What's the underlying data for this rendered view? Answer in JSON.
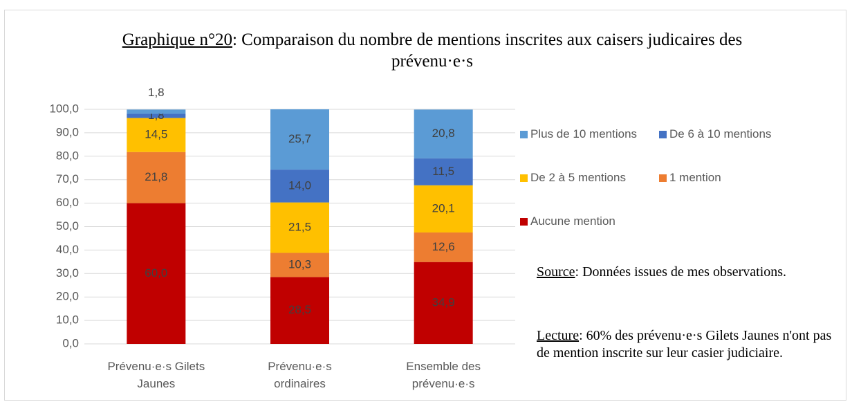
{
  "chart_data": {
    "type": "stacked_bar",
    "title_prefix": "Graphique n°20",
    "title": ": Comparaison du nombre de mentions inscrites aux caisers judicaires des prévenu·e·s",
    "categories": [
      "Prévenu·e·s Gilets Jaunes",
      "Prévenu·e·s ordinaires",
      "Ensemble des prévenu·e·s"
    ],
    "series": [
      {
        "name": "Aucune mention",
        "color": "#c00000",
        "values": [
          60.0,
          28.5,
          34.9
        ],
        "value_labels": [
          "60,0",
          "28,5",
          "34,9"
        ]
      },
      {
        "name": "1 mention",
        "color": "#ed7d31",
        "values": [
          21.8,
          10.3,
          12.6
        ],
        "value_labels": [
          "21,8",
          "10,3",
          "12,6"
        ]
      },
      {
        "name": "De 2 à 5 mentions",
        "color": "#ffc000",
        "values": [
          14.5,
          21.5,
          20.1
        ],
        "value_labels": [
          "14,5",
          "21,5",
          "20,1"
        ]
      },
      {
        "name": "De 6 à 10 mentions",
        "color": "#4472c4",
        "values": [
          1.8,
          14.0,
          11.5
        ],
        "value_labels": [
          "1,8",
          "14,0",
          "11,5"
        ]
      },
      {
        "name": "Plus de 10 mentions",
        "color": "#5b9bd5",
        "values": [
          1.8,
          25.7,
          20.8
        ],
        "value_labels": [
          "1,8",
          "25,7",
          "20,8"
        ]
      }
    ],
    "ylim": [
      0,
      100
    ],
    "yticks": [
      {
        "value": 0,
        "label": "0,0"
      },
      {
        "value": 10,
        "label": "10,0"
      },
      {
        "value": 20,
        "label": "20,0"
      },
      {
        "value": 30,
        "label": "30,0"
      },
      {
        "value": 40,
        "label": "40,0"
      },
      {
        "value": 50,
        "label": "50,0"
      },
      {
        "value": 60,
        "label": "60,0"
      },
      {
        "value": 70,
        "label": "70,0"
      },
      {
        "value": 80,
        "label": "80,0"
      },
      {
        "value": 90,
        "label": "90,0"
      },
      {
        "value": 100,
        "label": "100,0"
      }
    ],
    "grid": true,
    "legend_position": "right",
    "source_label": "Source",
    "source_text": ": Données issues de mes observations.",
    "reading_label": "Lecture",
    "reading_text": ": 60% des prévenu·e·s Gilets Jaunes n'ont pas de mention inscrite sur leur casier judiciaire."
  }
}
